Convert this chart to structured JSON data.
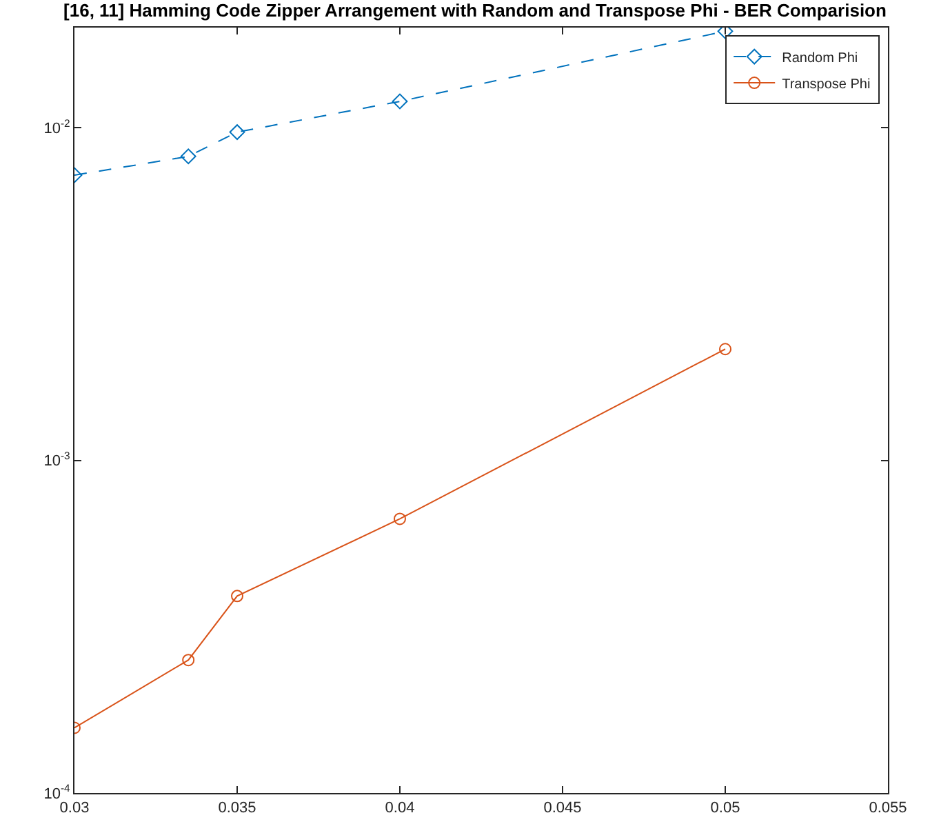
{
  "chart_data": {
    "type": "line",
    "title": "[16, 11] Hamming Code Zipper Arrangement with Random and Transpose Phi - BER Comparision",
    "log": "y",
    "grid": false,
    "legend": "top right",
    "xlim": [
      0.03,
      0.055
    ],
    "xticks": [
      0.03,
      0.035,
      0.04,
      0.045,
      0.05,
      0.055
    ],
    "ylim": [
      0.0001,
      0.02
    ],
    "yticks": [
      {
        "value": 0.0001,
        "label": "10$^{-4}$"
      },
      {
        "value": 0.001,
        "label": "10$^{-3}$"
      },
      {
        "value": 0.01,
        "label": "10$^{-2}$"
      }
    ],
    "x": [
      0.03,
      0.0335,
      0.035,
      0.04,
      0.05
    ],
    "series": [
      {
        "name": "Random Phi",
        "color": "#0072bd",
        "marker": "diamond",
        "line_style": "dashed",
        "values": [
          0.0072,
          0.0082,
          0.0097,
          0.012,
          0.0195
        ]
      },
      {
        "name": "Transpose Phi",
        "color": "#d95319",
        "marker": "circle",
        "line_style": "solid",
        "values": [
          0.000157,
          0.000251,
          0.000391,
          0.000667,
          0.00216
        ]
      }
    ]
  }
}
